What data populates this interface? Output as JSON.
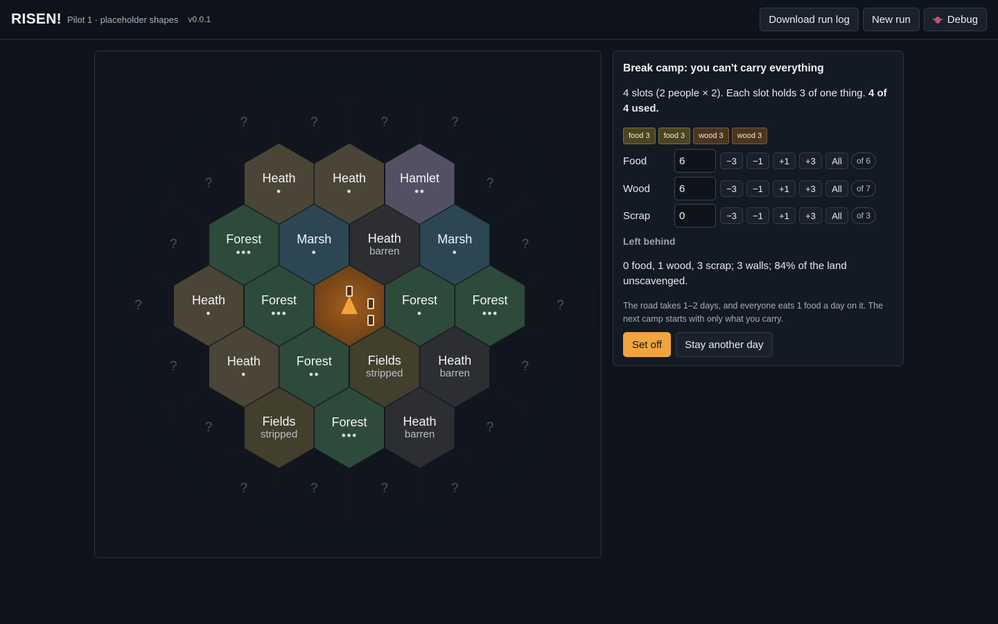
{
  "header": {
    "brand": "RISEN!",
    "subtitle": "Pilot 1 · placeholder shapes",
    "version": "v0.0.1",
    "download_label": "Download run log",
    "new_run_label": "New run",
    "debug_label": "Debug"
  },
  "map": {
    "unknown_mark": "?",
    "tiles": [
      {
        "id": "r0c0",
        "type": "unknown"
      },
      {
        "id": "r0c1",
        "type": "unknown"
      },
      {
        "id": "r0c2",
        "type": "unknown"
      },
      {
        "id": "r0c3",
        "type": "unknown"
      },
      {
        "id": "r1c0",
        "type": "unknown"
      },
      {
        "id": "r1c1",
        "type": "heath",
        "name": "Heath",
        "marker": "●"
      },
      {
        "id": "r1c2",
        "type": "heath",
        "name": "Heath",
        "marker": "●"
      },
      {
        "id": "r1c3",
        "type": "hamlet",
        "name": "Hamlet",
        "marker": "●●"
      },
      {
        "id": "r1c4",
        "type": "unknown"
      },
      {
        "id": "r2c0",
        "type": "unknown"
      },
      {
        "id": "r2c1",
        "type": "forest",
        "name": "Forest",
        "marker": "●●●"
      },
      {
        "id": "r2c2",
        "type": "marsh",
        "name": "Marsh",
        "marker": "●"
      },
      {
        "id": "r2c3",
        "type": "barren",
        "name": "Heath",
        "status": "barren"
      },
      {
        "id": "r2c4",
        "type": "marsh",
        "name": "Marsh",
        "marker": "●"
      },
      {
        "id": "r2c5",
        "type": "unknown"
      },
      {
        "id": "r3c0",
        "type": "unknown"
      },
      {
        "id": "r3c1",
        "type": "heath",
        "name": "Heath",
        "marker": "●"
      },
      {
        "id": "r3c2",
        "type": "forest",
        "name": "Forest",
        "marker": "●●●"
      },
      {
        "id": "r3c3",
        "type": "camp"
      },
      {
        "id": "r3c4",
        "type": "forest",
        "name": "Forest",
        "marker": "●"
      },
      {
        "id": "r3c5",
        "type": "forest",
        "name": "Forest",
        "marker": "●●●"
      },
      {
        "id": "r3c6",
        "type": "unknown"
      },
      {
        "id": "r4c0",
        "type": "unknown"
      },
      {
        "id": "r4c1",
        "type": "heath",
        "name": "Heath",
        "marker": "●"
      },
      {
        "id": "r4c2",
        "type": "forest",
        "name": "Forest",
        "marker": "●●"
      },
      {
        "id": "r4c3",
        "type": "fields",
        "name": "Fields",
        "status": "stripped"
      },
      {
        "id": "r4c4",
        "type": "barren",
        "name": "Heath",
        "status": "barren"
      },
      {
        "id": "r4c5",
        "type": "unknown"
      },
      {
        "id": "r5c0",
        "type": "unknown"
      },
      {
        "id": "r5c1",
        "type": "fields",
        "name": "Fields",
        "status": "stripped"
      },
      {
        "id": "r5c2",
        "type": "forest",
        "name": "Forest",
        "marker": "●●●"
      },
      {
        "id": "r5c3",
        "type": "barren",
        "name": "Heath",
        "status": "barren"
      },
      {
        "id": "r5c4",
        "type": "unknown"
      },
      {
        "id": "r6c0",
        "type": "unknown"
      },
      {
        "id": "r6c1",
        "type": "unknown"
      },
      {
        "id": "r6c2",
        "type": "unknown"
      },
      {
        "id": "r6c3",
        "type": "unknown"
      }
    ]
  },
  "camp_panel": {
    "title": "Break camp: you can't carry everything",
    "slots_text": "4 slots (2 people × 2). Each slot holds 3 of one thing.",
    "slots_used": "4 of 4 used.",
    "chips": [
      {
        "label": "food 3",
        "kind": "food"
      },
      {
        "label": "food 3",
        "kind": "food"
      },
      {
        "label": "wood 3",
        "kind": "wood"
      },
      {
        "label": "wood 3",
        "kind": "wood"
      }
    ],
    "step_labels": {
      "minus3": "−3",
      "minus1": "−1",
      "plus1": "+1",
      "plus3": "+3",
      "all": "All"
    },
    "resources": [
      {
        "label": "Food",
        "value": "6",
        "of": "of 6"
      },
      {
        "label": "Wood",
        "value": "6",
        "of": "of 7"
      },
      {
        "label": "Scrap",
        "value": "0",
        "of": "of 3"
      }
    ],
    "left_behind_heading": "Left behind",
    "left_behind_text": "0 food, 1 wood, 3 scrap; 3 walls; 84% of the land unscavenged.",
    "road_note": "The road takes 1–2 days, and everyone eats 1 food a day on it. The next camp starts with only what you carry.",
    "set_off_label": "Set off",
    "stay_label": "Stay another day"
  },
  "colors": {
    "accent": "#f0a53f",
    "background": "#0e131b",
    "heath": "#4a4536",
    "forest": "#2d4a3b",
    "marsh": "#2c4753",
    "hamlet": "#545063",
    "fields": "#433f2d",
    "barren": "#2c2e32",
    "camp": "#7b4817"
  }
}
